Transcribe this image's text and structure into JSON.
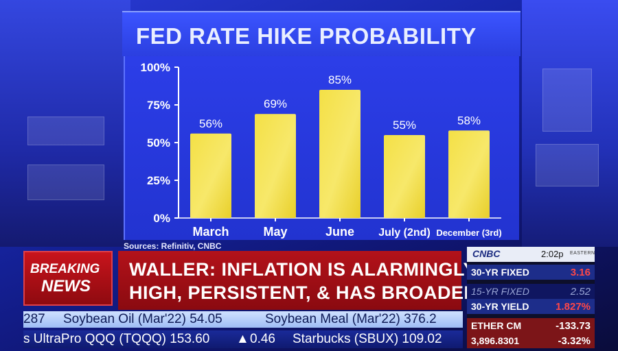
{
  "chart_data": {
    "type": "bar",
    "title": "FED RATE HIKE PROBABILITY",
    "categories": [
      "March",
      "May",
      "June",
      "July (2nd)",
      "December (3rd)"
    ],
    "values": [
      56,
      69,
      85,
      55,
      58
    ],
    "value_labels": [
      "56%",
      "69%",
      "85%",
      "55%",
      "58%"
    ],
    "yticks": [
      "100%",
      "75%",
      "50%",
      "25%",
      "0%"
    ],
    "ytick_values": [
      100,
      75,
      50,
      25,
      0
    ],
    "ylim": [
      0,
      100
    ],
    "grid": false,
    "bar_color": "#f4e046",
    "source": "Sources: Refinitiv, CNBC"
  },
  "lower_third": {
    "breaking_line1": "BREAKING",
    "breaking_line2": "NEWS",
    "headline_line1": "WALLER: INFLATION IS ALARMINGLY",
    "headline_line2": "HIGH, PERSISTENT, & HAS BROADENED"
  },
  "ticker_top": {
    "partial": "287",
    "item1": "Soybean Oil (Mar'22) 54.05",
    "item2": "Soybean Meal (Mar'22) 376.2"
  },
  "ticker_bottom": {
    "item1": "s UltraPro QQQ (TQQQ) 153.60",
    "change_arrow": "▲",
    "change": "0.46",
    "item2": "Starbucks (SBUX) 109.02"
  },
  "market_box": {
    "logo": "CNBC",
    "time": "2:02p",
    "timezone": "EASTERN",
    "rows": [
      {
        "label": "30-YR FIXED",
        "value": "3.16"
      },
      {
        "label": "15-YR FIXED",
        "value": "2.52"
      },
      {
        "label": "30-YR YIELD",
        "value": "1.827%"
      },
      {
        "label": "ETHER CM",
        "value": "-133.73"
      },
      {
        "label": "3,896.8301",
        "value": "-3.32%"
      }
    ]
  },
  "colors": {
    "accent_red": "#b3121a",
    "panel_blue": "#2b3fe0",
    "bar_yellow": "#f4e046"
  }
}
